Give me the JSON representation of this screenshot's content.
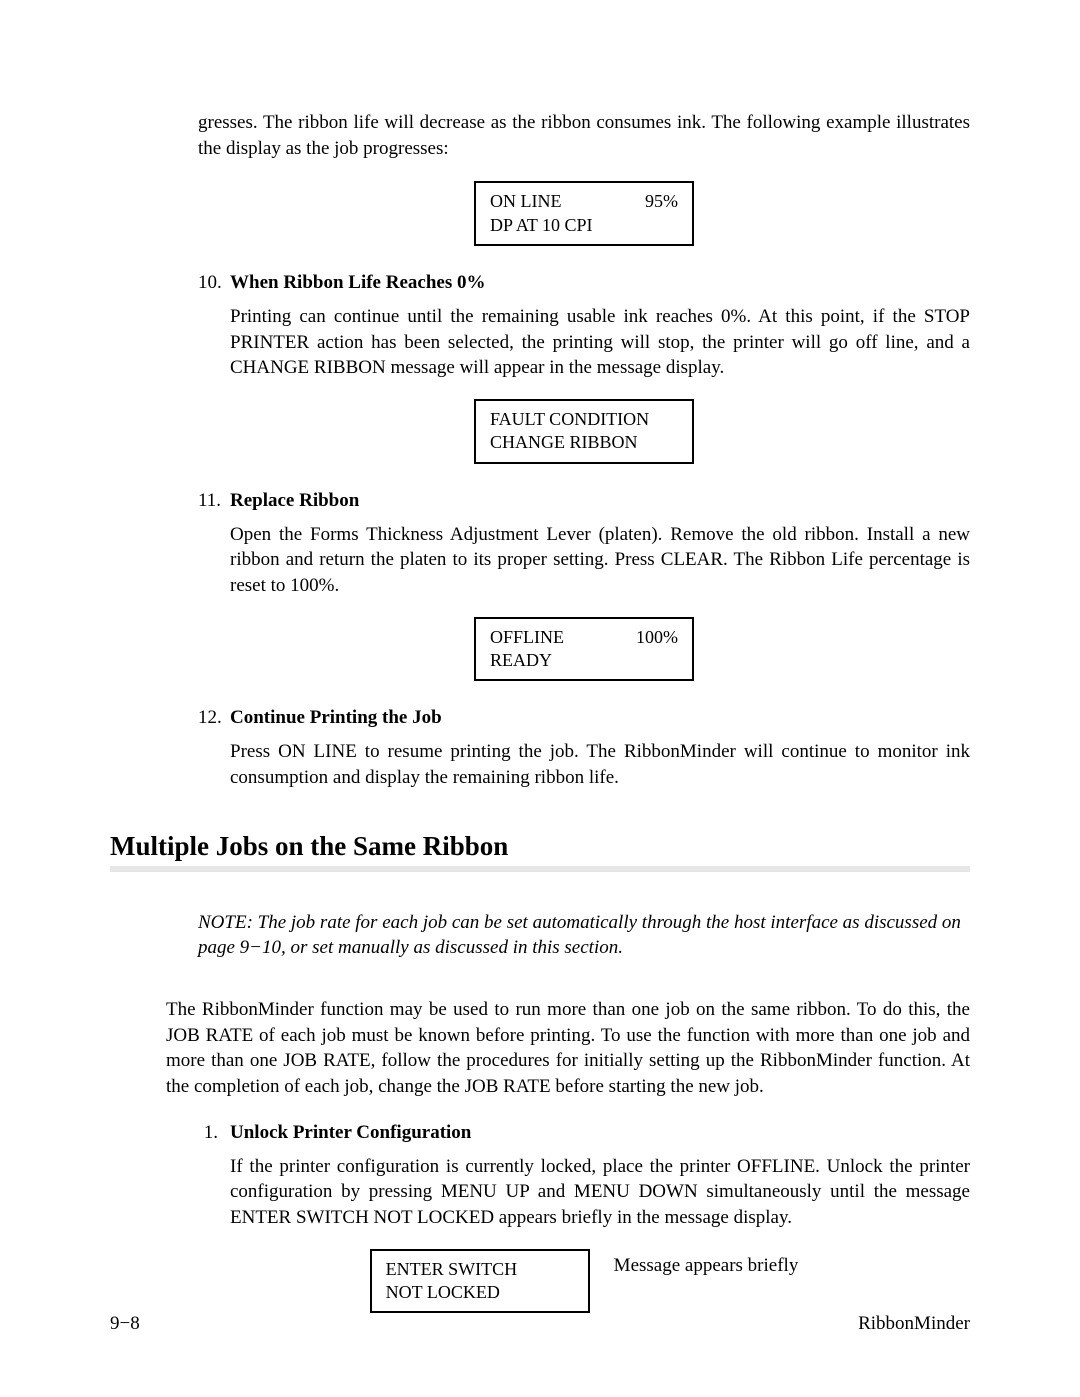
{
  "intro": "gresses. The ribbon life will decrease as the ribbon consumes ink. The following example illustrates the display as the job progresses:",
  "display1": {
    "line1_left": "ON LINE",
    "line1_right": "95%",
    "line2": "DP AT 10 CPI"
  },
  "item10": {
    "number": "10.",
    "heading": "When Ribbon Life Reaches 0%",
    "body": "Printing can continue until the remaining usable ink reaches 0%. At this point, if the STOP PRINTER action has been selected, the printing will stop, the printer will go off line, and a CHANGE RIBBON message will appear in the message display."
  },
  "display2": {
    "line1": "FAULT CONDITION",
    "line2": "CHANGE RIBBON"
  },
  "item11": {
    "number": "11.",
    "heading": "Replace Ribbon",
    "body": "Open the Forms Thickness Adjustment Lever (platen). Remove the old ribbon. Install a new ribbon and return the platen to its proper setting. Press CLEAR. The Ribbon Life percentage is reset to 100%."
  },
  "display3": {
    "line1_left": "OFFLINE",
    "line1_right": "100%",
    "line2": "READY"
  },
  "item12": {
    "number": "12.",
    "heading": "Continue Printing the Job",
    "body": "Press ON LINE to resume printing the job. The RibbonMinder will continue to monitor ink consumption and display the remaining ribbon life."
  },
  "section_heading": "Multiple Jobs on the Same Ribbon",
  "note": "NOTE: The job rate for each job can be set automatically through the host interface as discussed on page 9−10, or set manually as discussed in this section.",
  "multi_para": "The RibbonMinder function may be used to run more than one job on the same ribbon. To do this, the JOB RATE of each job must be known before printing. To use the function with more than one job and more than one JOB RATE, follow the procedures for initially setting up the RibbonMinder function. At the completion of each job, change the JOB RATE before starting the new job.",
  "item1": {
    "number": "1.",
    "heading": "Unlock Printer Configuration",
    "body": "If the printer configuration is currently locked, place the printer OFFLINE. Unlock the printer configuration by pressing MENU UP and MENU DOWN simultaneously until the message ENTER SWITCH NOT LOCKED appears briefly in the message display."
  },
  "display4": {
    "line1": "ENTER SWITCH",
    "line2": "NOT LOCKED",
    "caption": "Message appears briefly"
  },
  "footer": {
    "left": "9−8",
    "right": "RibbonMinder"
  }
}
